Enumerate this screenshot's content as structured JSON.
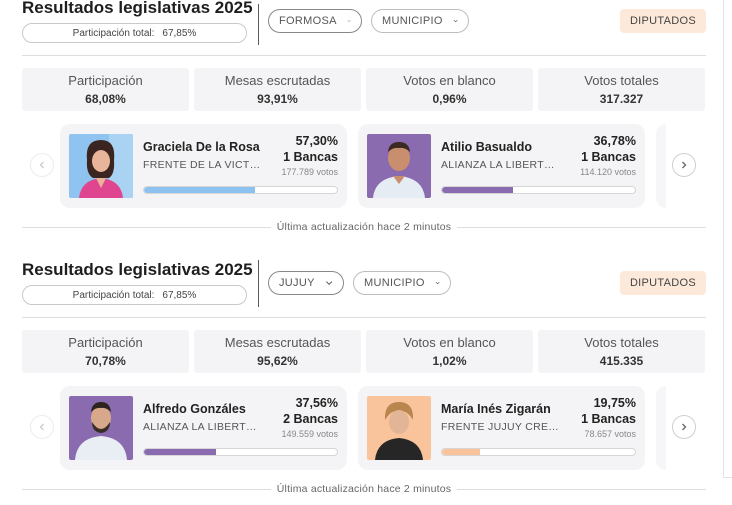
{
  "sections": [
    {
      "title": "Resultados legislativas 2025",
      "participation_total_label": "Participación total:",
      "participation_total_value": "67,85%",
      "province": "FORMOSA",
      "municipality": "MUNICIPIO",
      "category": "DIPUTADOS",
      "stats": [
        {
          "label": "Participación",
          "value": "68,08%"
        },
        {
          "label": "Mesas escrutadas",
          "value": "93,91%"
        },
        {
          "label": "Votos en blanco",
          "value": "0,96%"
        },
        {
          "label": "Votos totales",
          "value": "317.327"
        }
      ],
      "candidates": [
        {
          "name": "Graciela De la Rosa",
          "party": "FRENTE DE LA VICT…",
          "pct": "57,30%",
          "seats": "1 Bancas",
          "votes": "177.789 votos",
          "bar_fraction": 0.573,
          "bar_color": "#8dc2f0"
        },
        {
          "name": "Atilio Basualdo",
          "party": "ALIANZA LA LIBERT…",
          "pct": "36,78%",
          "seats": "1 Bancas",
          "votes": "114.120 votos",
          "bar_fraction": 0.3678,
          "bar_color": "#8a6bb0"
        }
      ],
      "updated": "Última actualización hace 2 minutos"
    },
    {
      "title": "Resultados legislativas 2025",
      "participation_total_label": "Participación total:",
      "participation_total_value": "67,85%",
      "province": "JUJUY",
      "municipality": "MUNICIPIO",
      "category": "DIPUTADOS",
      "stats": [
        {
          "label": "Participación",
          "value": "70,78%"
        },
        {
          "label": "Mesas escrutadas",
          "value": "95,62%"
        },
        {
          "label": "Votos en blanco",
          "value": "1,02%"
        },
        {
          "label": "Votos totales",
          "value": "415.335"
        }
      ],
      "candidates": [
        {
          "name": "Alfredo Gonzáles",
          "party": "ALIANZA LA LIBERT…",
          "pct": "37,56%",
          "seats": "2 Bancas",
          "votes": "149.559 votos",
          "bar_fraction": 0.3756,
          "bar_color": "#8a6bb0"
        },
        {
          "name": "María Inés Zigarán",
          "party": "FRENTE JUJUY CRE…",
          "pct": "19,75%",
          "seats": "1 Bancas",
          "votes": "78.657 votos",
          "bar_fraction": 0.1975,
          "bar_color": "#f9c49b"
        }
      ],
      "updated": "Última actualización hace 2 minutos"
    }
  ],
  "colors": {
    "badge_bg": "#fde9d9",
    "stat_bg": "#f4f4f6",
    "card_bg": "#f4f4f6"
  },
  "icons": [
    "chevron-down-icon",
    "chevron-left-icon",
    "chevron-right-icon"
  ]
}
